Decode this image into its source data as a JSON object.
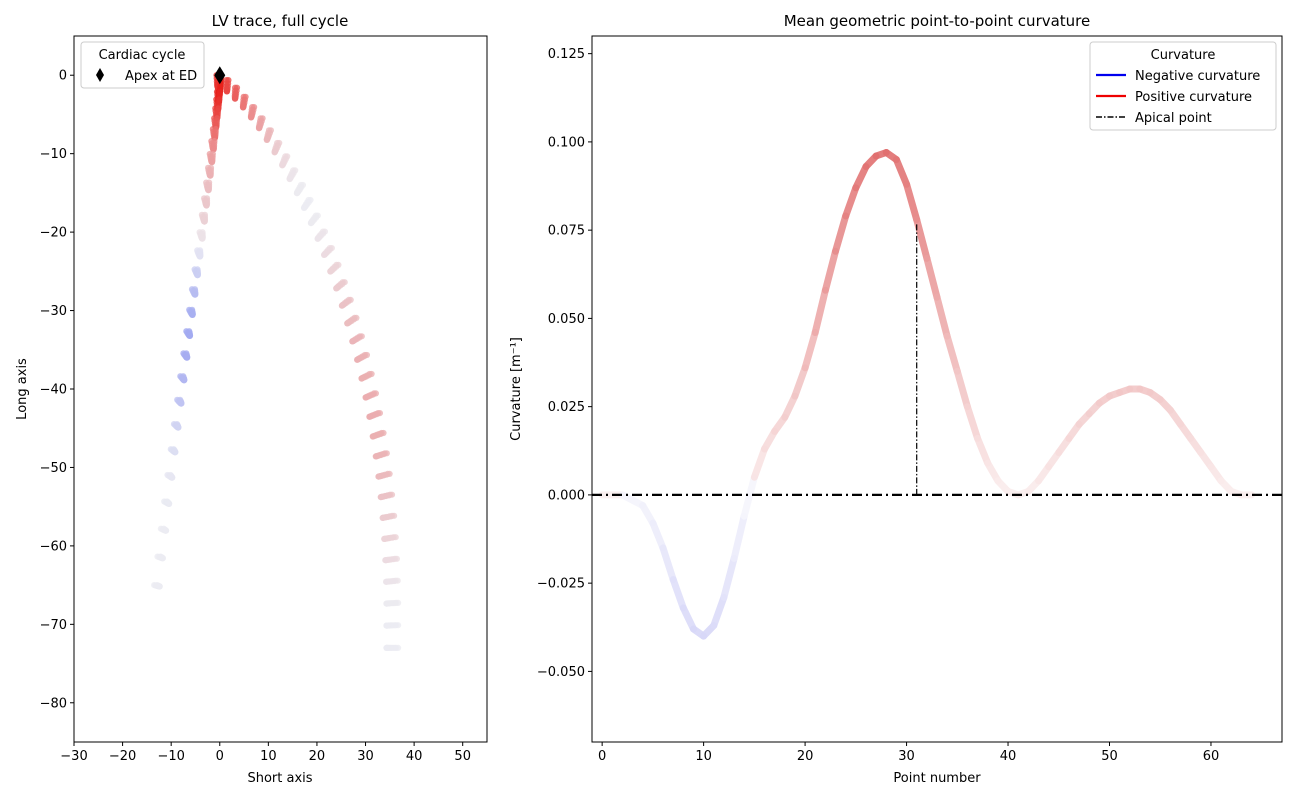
{
  "chart_data": [
    {
      "type": "scatter",
      "title": "LV trace, full cycle",
      "xlabel": "Short axis",
      "ylabel": "Long axis",
      "xlim": [
        -30,
        55
      ],
      "ylim": [
        -85,
        5
      ],
      "xticks": [
        "−30",
        "−20",
        "−10",
        "0",
        "10",
        "20",
        "30",
        "40",
        "50"
      ],
      "yticks": [
        "0",
        "−10",
        "−20",
        "−30",
        "−40",
        "−50",
        "−60",
        "−70",
        "−80"
      ],
      "grid": false,
      "legend": {
        "title": "Cardiac cycle",
        "position": "top-left",
        "entries": [
          {
            "label": "Apex at ED",
            "marker": "diamond",
            "color": "#000000"
          }
        ]
      },
      "apex_marker": {
        "x": 0,
        "y": 0
      },
      "colormap": {
        "negative": "#3b4cf0",
        "neutral": "#ececf2",
        "positive": "#e8201a"
      },
      "trace_profile": {
        "description": "LV boundary points, colored by signed curvature along 66 point numbers",
        "left_base": {
          "x": -13.5,
          "y": -65
        },
        "apex": {
          "x": 0,
          "y": 0
        },
        "right_base": {
          "x": 35.5,
          "y": -73
        }
      }
    },
    {
      "type": "line",
      "title": "Mean geometric point-to-point curvature",
      "xlabel": "Point number",
      "ylabel": "Curvature [m⁻¹]",
      "xlim": [
        -1,
        67
      ],
      "ylim": [
        -0.07,
        0.13
      ],
      "xticks": [
        "0",
        "10",
        "20",
        "30",
        "40",
        "50",
        "60"
      ],
      "yticks": [
        "0.125",
        "0.100",
        "0.075",
        "0.050",
        "0.025",
        "0.000",
        "−0.025",
        "−0.050"
      ],
      "grid": false,
      "legend": {
        "title": "Curvature",
        "position": "top-right",
        "entries": [
          {
            "label": "Negative curvature",
            "color": "#0000ee",
            "style": "solid"
          },
          {
            "label": "Positive curvature",
            "color": "#ee0000",
            "style": "solid"
          },
          {
            "label": "Apical point",
            "color": "#000000",
            "style": "dashdot"
          }
        ]
      },
      "zero_line": 0,
      "apical_point": {
        "x": 31,
        "y": 0.077
      },
      "series": [
        {
          "x": [
            0,
            2,
            4,
            5,
            6,
            7,
            8,
            9,
            10,
            11,
            12,
            13,
            14,
            15,
            16,
            17,
            18,
            19,
            20,
            21,
            22,
            23,
            24,
            25,
            26,
            27,
            28,
            29,
            30,
            31,
            32,
            33,
            34,
            35,
            36,
            37,
            38,
            39,
            40,
            41,
            42,
            43,
            44,
            45,
            46,
            47,
            48,
            49,
            50,
            51,
            52,
            53,
            54,
            55,
            56,
            57,
            58,
            59,
            60,
            61,
            62,
            63,
            64
          ],
          "values": [
            0.0,
            0.0,
            -0.003,
            -0.008,
            -0.015,
            -0.024,
            -0.032,
            -0.038,
            -0.04,
            -0.037,
            -0.029,
            -0.018,
            -0.006,
            0.005,
            0.013,
            0.018,
            0.022,
            0.028,
            0.036,
            0.046,
            0.058,
            0.069,
            0.079,
            0.087,
            0.093,
            0.096,
            0.097,
            0.095,
            0.088,
            0.078,
            0.067,
            0.056,
            0.045,
            0.035,
            0.025,
            0.016,
            0.009,
            0.004,
            0.001,
            0.0,
            0.001,
            0.004,
            0.008,
            0.012,
            0.016,
            0.02,
            0.023,
            0.026,
            0.028,
            0.029,
            0.03,
            0.03,
            0.029,
            0.027,
            0.024,
            0.02,
            0.016,
            0.012,
            0.008,
            0.004,
            0.001,
            0.0,
            0.0
          ]
        }
      ]
    }
  ]
}
